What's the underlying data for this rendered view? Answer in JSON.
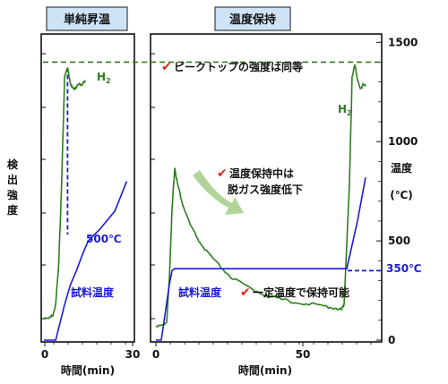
{
  "chart_data": [
    {
      "type": "line",
      "panel": "left",
      "title": "単純昇温",
      "xlabel": "時間(min)",
      "x_ticks": [
        "0",
        "30"
      ],
      "xlim": [
        0,
        30
      ],
      "y_left_label": "検出強度",
      "temperature_label": "試料温度",
      "series": [
        {
          "name": "H2",
          "color": "#2e7d1e",
          "x": [
            0,
            2,
            3,
            4,
            5,
            6,
            7,
            8,
            9,
            10,
            11,
            12,
            13,
            14
          ],
          "y_rel": [
            0.05,
            0.05,
            0.06,
            0.1,
            0.25,
            0.55,
            0.95,
            0.98,
            0.92,
            0.9,
            0.91,
            0.92,
            0.92,
            0.93
          ]
        },
        {
          "name": "試料温度",
          "color": "#1a1adc",
          "unit": "°C",
          "x": [
            0,
            4,
            5,
            7,
            9,
            11,
            13,
            15,
            19,
            24,
            28
          ],
          "y": [
            0,
            0,
            60,
            180,
            280,
            350,
            430,
            500,
            560,
            650,
            800
          ]
        }
      ],
      "annotations": [
        "500℃",
        "H2"
      ]
    },
    {
      "type": "line",
      "panel": "right",
      "title": "温度保持",
      "xlabel": "時間(min)",
      "x_ticks": [
        "0",
        "50"
      ],
      "xlim": [
        0,
        80
      ],
      "y_right_label": "温度 (℃)",
      "y_ticks": [
        0,
        500,
        1000,
        1500
      ],
      "ylim": [
        0,
        1500
      ],
      "series": [
        {
          "name": "H2",
          "color": "#2e7d1e",
          "x": [
            0,
            4,
            5,
            6,
            7,
            8,
            10,
            13,
            17,
            22,
            28,
            35,
            42,
            50,
            58,
            65,
            69,
            70,
            72,
            73,
            74,
            75,
            76,
            77,
            78
          ],
          "y_rel": [
            0.02,
            0.03,
            0.2,
            0.45,
            0.61,
            0.55,
            0.47,
            0.39,
            0.32,
            0.26,
            0.2,
            0.16,
            0.13,
            0.11,
            0.1,
            0.09,
            0.08,
            0.1,
            0.55,
            0.95,
            0.99,
            0.94,
            0.9,
            0.92,
            0.91
          ]
        },
        {
          "name": "試料温度",
          "color": "#1a1adc",
          "unit": "°C",
          "x": [
            0,
            2,
            5,
            6,
            7,
            10,
            20,
            40,
            60,
            71,
            75,
            78
          ],
          "y": [
            0,
            0,
            280,
            350,
            360,
            360,
            360,
            360,
            360,
            360,
            600,
            820
          ]
        }
      ],
      "reference_lines": [
        {
          "label": "350℃",
          "value": 350,
          "color": "#1a1adc",
          "style": "dashed"
        },
        {
          "label": "ピークトップの強度は同等",
          "value": 1400,
          "color": "#2e7d1e",
          "style": "dashed"
        }
      ],
      "annotations": [
        {
          "check": "✔",
          "text": "ピークトップの強度は同等"
        },
        {
          "check": "✔",
          "text_lines": [
            "温度保持中は",
            "脱ガス強度低下"
          ]
        },
        {
          "check": "✔",
          "text": "一定温度で保持可能"
        },
        {
          "text": "試料温度"
        },
        {
          "text": "H2"
        }
      ]
    }
  ],
  "colors": {
    "h2": "#2e7d1e",
    "temp": "#1a1adc",
    "check": "#e0241c",
    "panel_header": "#cfe3f7",
    "arrow": "#a8cf8e"
  }
}
